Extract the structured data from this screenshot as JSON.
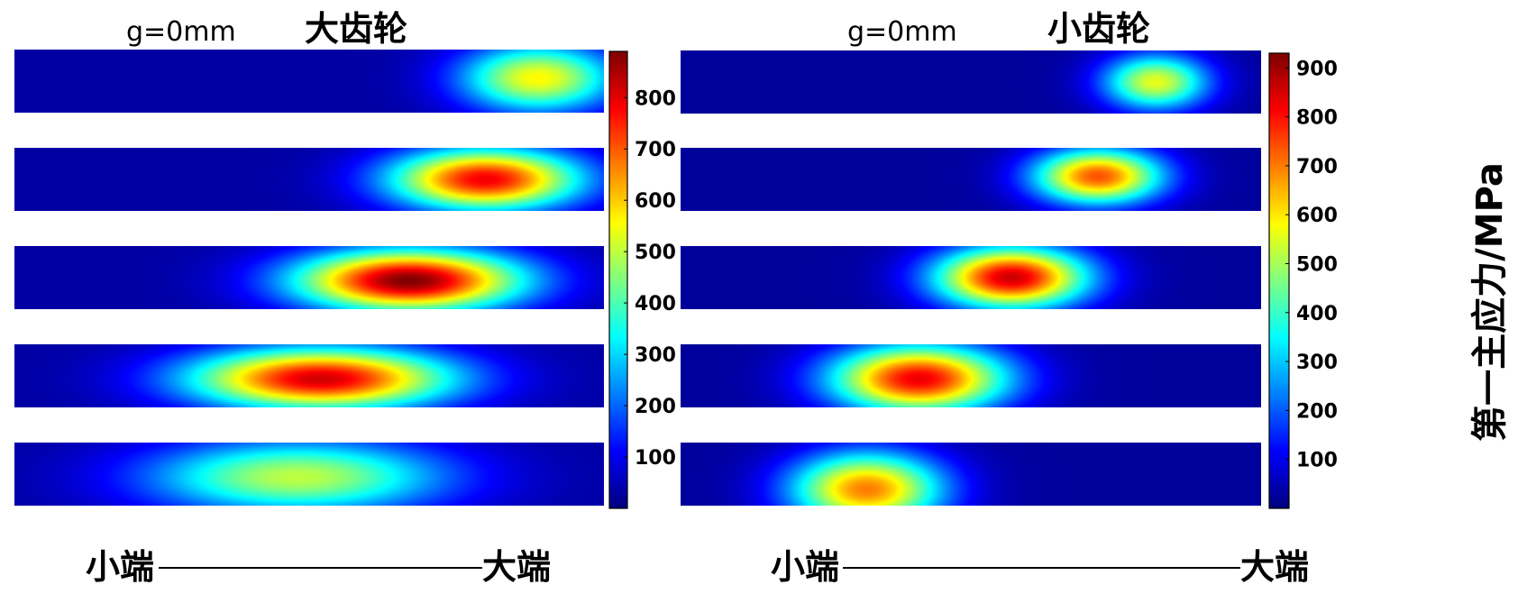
{
  "chart_data": [
    {
      "type": "heatmap",
      "gap_label": "g=0mm",
      "title": "大齿轮",
      "colorbar_ticks": [
        100,
        200,
        300,
        400,
        500,
        600,
        700,
        800
      ],
      "clim": [
        0,
        890
      ],
      "colormap": "jet",
      "x_end_labels": {
        "left": "小端",
        "right": "大端"
      },
      "strips": [
        {
          "peaks": [
            {
              "x": 0.89,
              "y": 0.45,
              "value": 560,
              "sx": 0.13,
              "sy": 0.55
            }
          ],
          "base": 30
        },
        {
          "peaks": [
            {
              "x": 0.8,
              "y": 0.5,
              "value": 790,
              "sx": 0.16,
              "sy": 0.5
            }
          ],
          "base": 30
        },
        {
          "peaks": [
            {
              "x": 0.67,
              "y": 0.55,
              "value": 890,
              "sx": 0.19,
              "sy": 0.5
            }
          ],
          "base": 30
        },
        {
          "peaks": [
            {
              "x": 0.52,
              "y": 0.55,
              "value": 820,
              "sx": 0.22,
              "sy": 0.5
            }
          ],
          "base": 30
        },
        {
          "peaks": [
            {
              "x": 0.48,
              "y": 0.55,
              "value": 500,
              "sx": 0.25,
              "sy": 0.6
            }
          ],
          "base": 30
        }
      ]
    },
    {
      "type": "heatmap",
      "gap_label": "g=0mm",
      "title": "小齿轮",
      "colorbar_ticks": [
        100,
        200,
        300,
        400,
        500,
        600,
        700,
        800,
        900
      ],
      "clim": [
        0,
        930
      ],
      "colormap": "jet",
      "colorbar_label": "第一主应力/MPa",
      "x_end_labels": {
        "left": "小端",
        "right": "大端"
      },
      "strips": [
        {
          "peaks": [
            {
              "x": 0.82,
              "y": 0.5,
              "value": 560,
              "sx": 0.09,
              "sy": 0.45
            }
          ],
          "base": 25
        },
        {
          "peaks": [
            {
              "x": 0.72,
              "y": 0.45,
              "value": 740,
              "sx": 0.11,
              "sy": 0.45
            }
          ],
          "base": 25
        },
        {
          "peaks": [
            {
              "x": 0.57,
              "y": 0.5,
              "value": 860,
              "sx": 0.13,
              "sy": 0.5
            }
          ],
          "base": 25
        },
        {
          "peaks": [
            {
              "x": 0.41,
              "y": 0.55,
              "value": 830,
              "sx": 0.15,
              "sy": 0.55
            }
          ],
          "base": 25
        },
        {
          "peaks": [
            {
              "x": 0.32,
              "y": 0.75,
              "value": 700,
              "sx": 0.13,
              "sy": 0.6
            }
          ],
          "base": 25
        }
      ]
    }
  ]
}
